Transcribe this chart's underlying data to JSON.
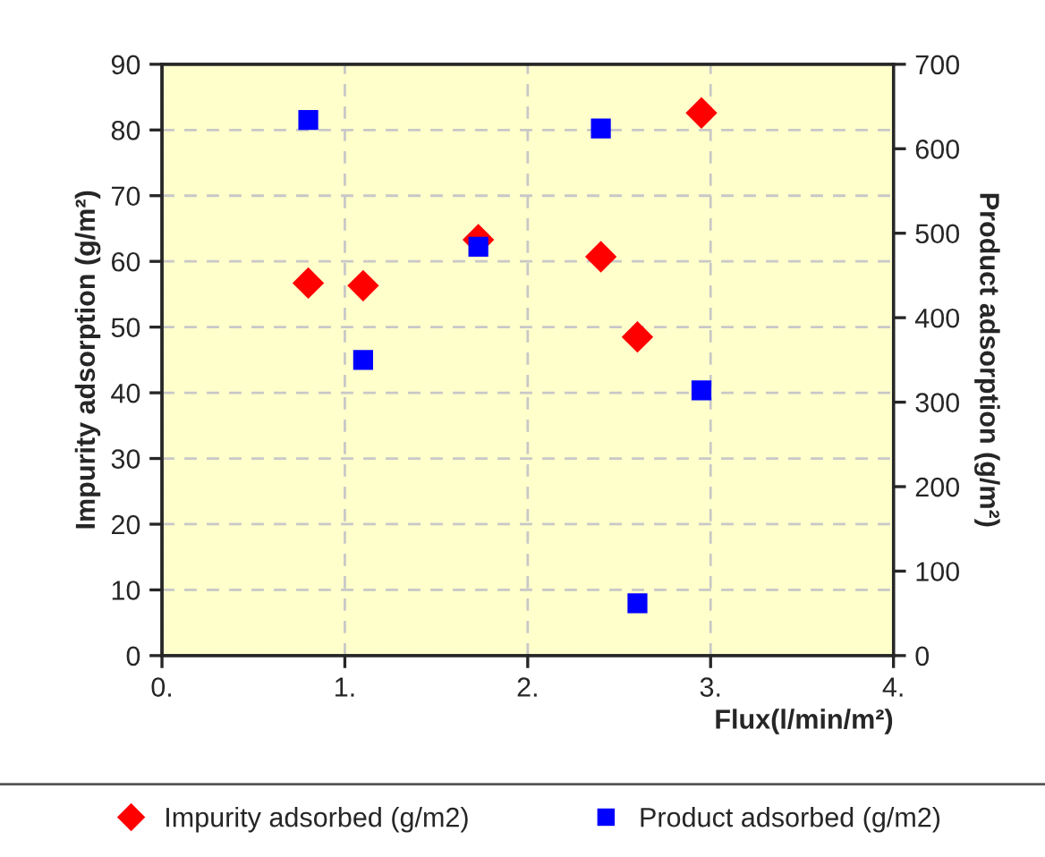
{
  "chart_data": {
    "type": "scatter",
    "xlabel": "Flux(l/min/m²)",
    "ylabel": "Impurity adsorption (g/m²)",
    "y2label": "Product adsorption (g/m²)",
    "x": [
      0.8,
      1.1,
      1.73,
      2.4,
      2.6,
      2.95
    ],
    "series": [
      {
        "name": "Impurity adsorbed (g/m2)",
        "color": "#ff0000",
        "marker": "diamond",
        "values": [
          56.7,
          56.3,
          63.3,
          60.7,
          48.5,
          82.6
        ]
      },
      {
        "name": "Product adsorbed (g/m2)",
        "color": "#0000ff",
        "marker": "square",
        "axis": "y2",
        "values": [
          634,
          350,
          484,
          624,
          62,
          314
        ]
      }
    ],
    "xlim": [
      0,
      4
    ],
    "xticks": [
      {
        "value": 0,
        "label": "0."
      },
      {
        "value": 1,
        "label": "1."
      },
      {
        "value": 2,
        "label": "2."
      },
      {
        "value": 3,
        "label": "3."
      },
      {
        "value": 4,
        "label": "4."
      }
    ],
    "ylim": [
      0,
      90
    ],
    "yticks": [
      0,
      10,
      20,
      30,
      40,
      50,
      60,
      70,
      80,
      90
    ],
    "y2lim": [
      0,
      700
    ],
    "y2ticks": [
      0,
      100,
      200,
      300,
      400,
      500,
      600,
      700
    ],
    "grid": true,
    "legend": "bottom"
  }
}
